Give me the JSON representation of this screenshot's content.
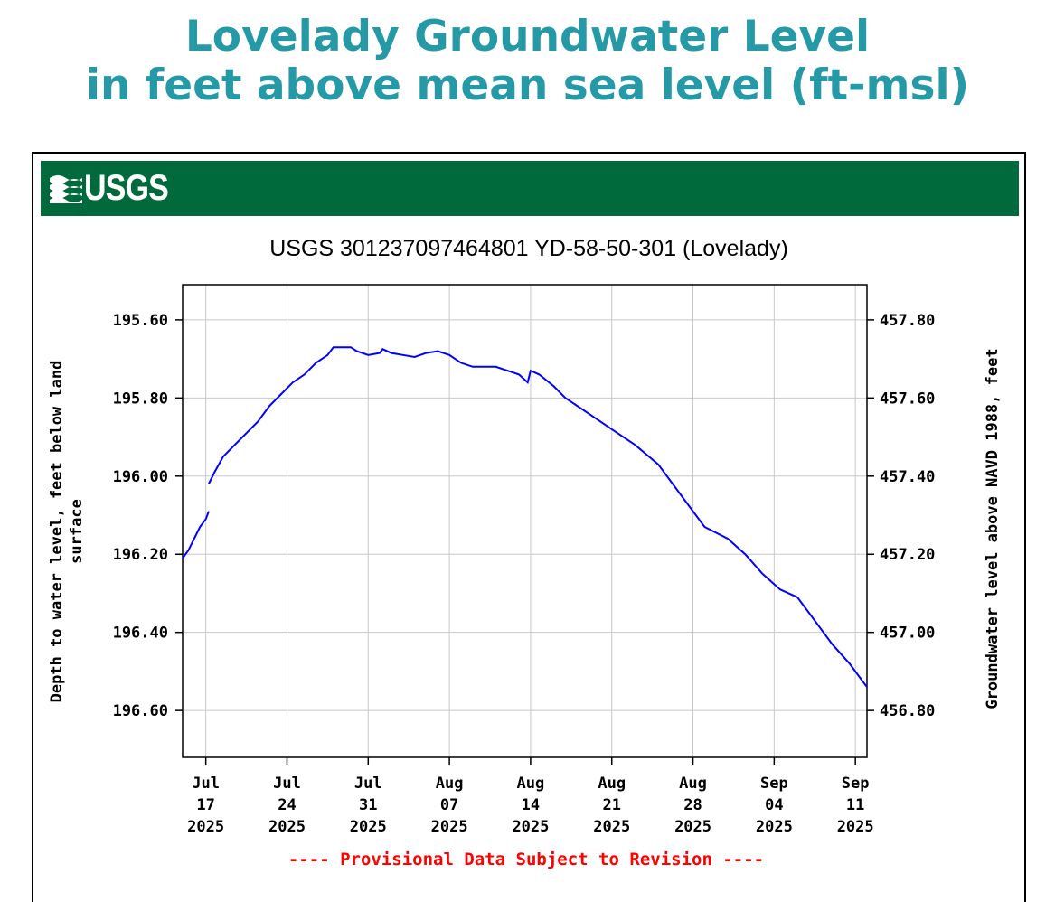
{
  "page_title": {
    "line1": "Lovelady Groundwater Level",
    "line2": "in feet above mean sea level (ft-msl)"
  },
  "banner": {
    "logo_text": "USGS",
    "color": "#006a3d"
  },
  "chart_data": {
    "type": "line",
    "title": "USGS 301237097464801 YD-58-50-301 (Lovelady)",
    "ylabel_left": [
      "Depth to water level, feet below land",
      "surface"
    ],
    "ylabel_right": "Groundwater level above NAVD 1988, feet",
    "footnote": "---- Provisional Data Subject to Revision ----",
    "x_ticks": [
      {
        "date": "2025-07-17",
        "label": [
          "Jul",
          "17",
          "2025"
        ]
      },
      {
        "date": "2025-07-24",
        "label": [
          "Jul",
          "24",
          "2025"
        ]
      },
      {
        "date": "2025-07-31",
        "label": [
          "Jul",
          "31",
          "2025"
        ]
      },
      {
        "date": "2025-08-07",
        "label": [
          "Aug",
          "07",
          "2025"
        ]
      },
      {
        "date": "2025-08-14",
        "label": [
          "Aug",
          "14",
          "2025"
        ]
      },
      {
        "date": "2025-08-21",
        "label": [
          "Aug",
          "21",
          "2025"
        ]
      },
      {
        "date": "2025-08-28",
        "label": [
          "Aug",
          "28",
          "2025"
        ]
      },
      {
        "date": "2025-09-04",
        "label": [
          "Sep",
          "04",
          "2025"
        ]
      },
      {
        "date": "2025-09-11",
        "label": [
          "Sep",
          "11",
          "2025"
        ]
      }
    ],
    "xlim": [
      "2025-07-15T00:00",
      "2025-09-12T00:00"
    ],
    "y_left_ticks": [
      "195.60",
      "195.80",
      "196.00",
      "196.20",
      "196.40",
      "196.60"
    ],
    "y_left_tick_values": [
      195.6,
      195.8,
      196.0,
      196.2,
      196.4,
      196.6
    ],
    "y_left_lim": [
      195.51,
      196.72
    ],
    "y_left_inverted": true,
    "y_right_ticks": [
      "457.80",
      "457.60",
      "457.40",
      "457.20",
      "457.00",
      "456.80"
    ],
    "y_right_tick_values": [
      457.8,
      457.6,
      457.4,
      457.2,
      457.0,
      456.8
    ],
    "grid": true,
    "series": [
      {
        "color": "#0000ff",
        "segments": [
          [
            [
              "2025-07-15T00:00",
              196.21
            ],
            [
              "2025-07-15T12:00",
              196.19
            ],
            [
              "2025-07-16T00:00",
              196.16
            ],
            [
              "2025-07-16T12:00",
              196.13
            ],
            [
              "2025-07-17T00:00",
              196.11
            ],
            [
              "2025-07-17T06:00",
              196.09
            ]
          ],
          [
            [
              "2025-07-17T06:00",
              196.02
            ],
            [
              "2025-07-17T18:00",
              195.99
            ],
            [
              "2025-07-18T12:00",
              195.95
            ],
            [
              "2025-07-19T12:00",
              195.92
            ],
            [
              "2025-07-20T12:00",
              195.89
            ],
            [
              "2025-07-21T12:00",
              195.86
            ],
            [
              "2025-07-22T12:00",
              195.82
            ],
            [
              "2025-07-23T12:00",
              195.79
            ],
            [
              "2025-07-24T12:00",
              195.76
            ],
            [
              "2025-07-25T12:00",
              195.74
            ],
            [
              "2025-07-26T12:00",
              195.71
            ],
            [
              "2025-07-27T12:00",
              195.69
            ],
            [
              "2025-07-28T00:00",
              195.67
            ],
            [
              "2025-07-29T12:00",
              195.67
            ],
            [
              "2025-07-30T00:00",
              195.68
            ],
            [
              "2025-07-31T00:00",
              195.69
            ],
            [
              "2025-08-01T00:00",
              195.685
            ],
            [
              "2025-08-01T06:00",
              195.675
            ],
            [
              "2025-08-02T00:00",
              195.685
            ],
            [
              "2025-08-03T00:00",
              195.69
            ],
            [
              "2025-08-04T00:00",
              195.695
            ],
            [
              "2025-08-05T00:00",
              195.685
            ],
            [
              "2025-08-06T00:00",
              195.68
            ],
            [
              "2025-08-07T00:00",
              195.69
            ],
            [
              "2025-08-08T00:00",
              195.71
            ],
            [
              "2025-08-09T00:00",
              195.72
            ],
            [
              "2025-08-10T00:00",
              195.72
            ],
            [
              "2025-08-11T00:00",
              195.72
            ],
            [
              "2025-08-12T00:00",
              195.73
            ],
            [
              "2025-08-13T00:00",
              195.74
            ],
            [
              "2025-08-13T18:00",
              195.76
            ],
            [
              "2025-08-14T00:00",
              195.73
            ],
            [
              "2025-08-14T18:00",
              195.74
            ],
            [
              "2025-08-16T00:00",
              195.77
            ],
            [
              "2025-08-17T00:00",
              195.8
            ],
            [
              "2025-08-19T00:00",
              195.84
            ],
            [
              "2025-08-21T00:00",
              195.88
            ],
            [
              "2025-08-23T00:00",
              195.92
            ],
            [
              "2025-08-25T00:00",
              195.97
            ],
            [
              "2025-08-27T00:00",
              196.05
            ],
            [
              "2025-08-29T00:00",
              196.13
            ],
            [
              "2025-08-31T00:00",
              196.16
            ],
            [
              "2025-09-01T12:00",
              196.2
            ],
            [
              "2025-09-03T00:00",
              196.25
            ],
            [
              "2025-09-04T12:00",
              196.29
            ],
            [
              "2025-09-06T00:00",
              196.31
            ],
            [
              "2025-09-07T12:00",
              196.37
            ],
            [
              "2025-09-09T00:00",
              196.43
            ],
            [
              "2025-09-10T12:00",
              196.48
            ],
            [
              "2025-09-11T12:00",
              196.52
            ],
            [
              "2025-09-12T00:00",
              196.54
            ]
          ]
        ]
      }
    ]
  }
}
